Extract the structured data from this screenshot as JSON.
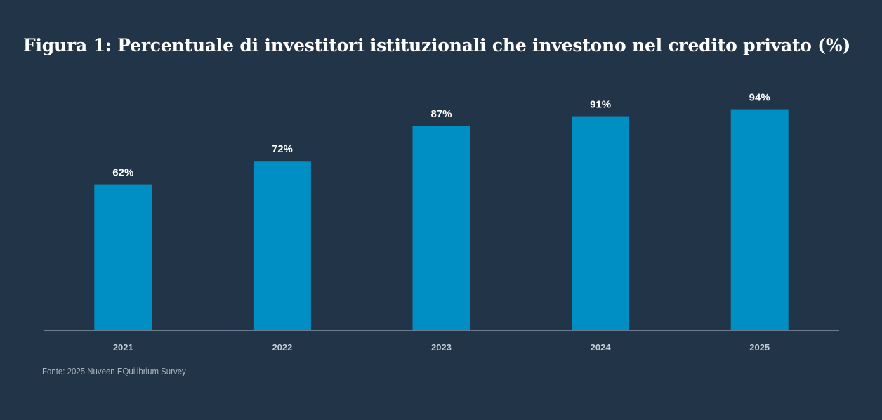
{
  "chart_data": {
    "type": "bar",
    "title": "Figura 1: Percentuale di investitori istituzionali che investono nel credito privato (%)",
    "categories": [
      "2021",
      "2022",
      "2023",
      "2024",
      "2025"
    ],
    "values": [
      62,
      72,
      87,
      91,
      94
    ],
    "data_labels": [
      "62%",
      "72%",
      "87%",
      "91%",
      "94%"
    ],
    "xlabel": "",
    "ylabel": "",
    "ylim": [
      0,
      100
    ],
    "grid": false,
    "legend": "none",
    "bar_color": "#008fc5",
    "axis_color": "#6b7c8d",
    "background_color": "#223447"
  },
  "footer": {
    "source": "Fonte: 2025 Nuveen EQuilibrium Survey"
  }
}
